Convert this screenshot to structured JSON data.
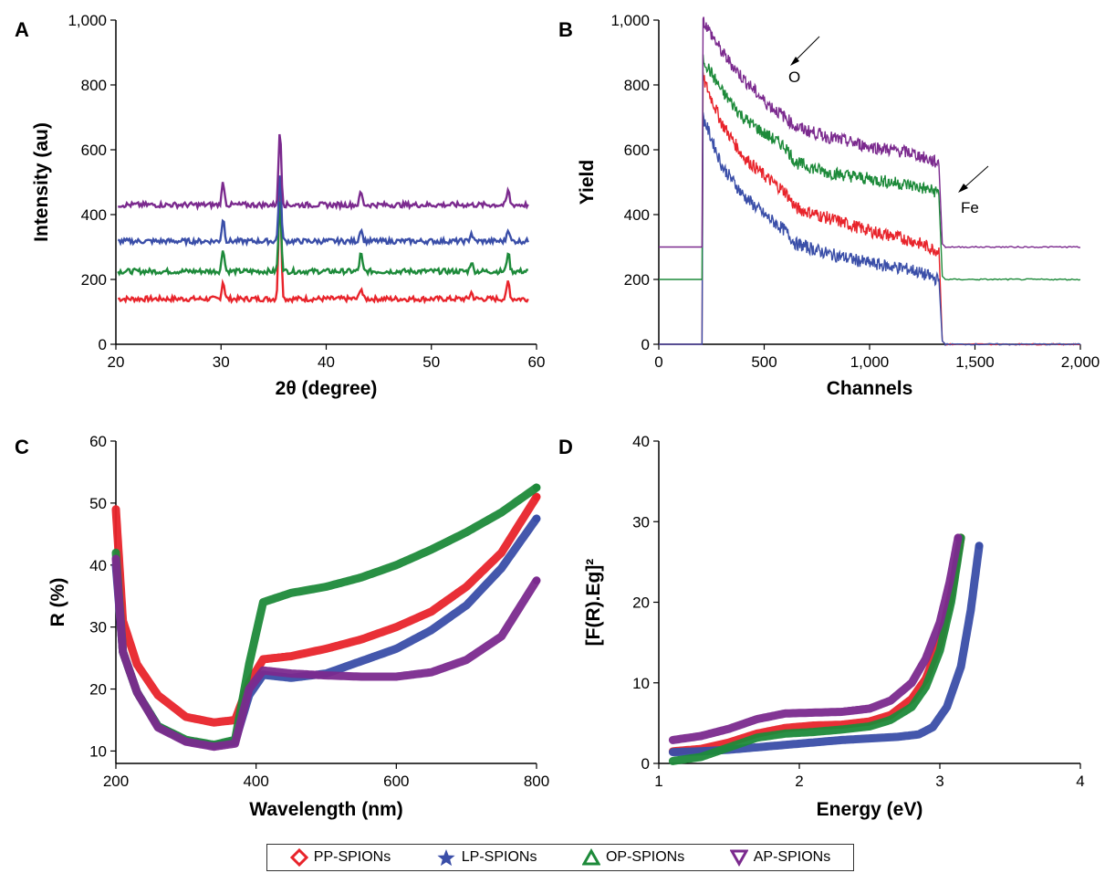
{
  "legend": [
    {
      "name": "PP-SPIONs",
      "color": "#e8242b",
      "marker": "diamond-icon"
    },
    {
      "name": "LP-SPIONs",
      "color": "#3a4ea8",
      "marker": "star-icon"
    },
    {
      "name": "OP-SPIONs",
      "color": "#1d8a3a",
      "marker": "triangle-up-icon"
    },
    {
      "name": "AP-SPIONs",
      "color": "#7b2a8e",
      "marker": "triangle-down-icon"
    }
  ],
  "chart_data": [
    {
      "panel": "A",
      "type": "line",
      "xlabel": "2θ (degree)",
      "ylabel": "Intensity (au)",
      "xlim": [
        20,
        60
      ],
      "ylim": [
        0,
        1000
      ],
      "xticks": [
        "20",
        "30",
        "40",
        "50",
        "60"
      ],
      "yticks": [
        "0",
        "200",
        "400",
        "600",
        "800",
        "1,000"
      ],
      "series": [
        {
          "color": "#e8242b",
          "baseline": 140,
          "peaks": [
            [
              30.2,
              55
            ],
            [
              35.6,
              350
            ],
            [
              43.3,
              35
            ],
            [
              53.8,
              20
            ],
            [
              57.3,
              55
            ],
            [
              62.8,
              0
            ]
          ]
        },
        {
          "color": "#1d8a3a",
          "baseline": 225,
          "peaks": [
            [
              30.2,
              70
            ],
            [
              35.6,
              220
            ],
            [
              43.3,
              55
            ],
            [
              53.8,
              30
            ],
            [
              57.3,
              60
            ]
          ]
        },
        {
          "color": "#3a4ea8",
          "baseline": 318,
          "peaks": [
            [
              30.2,
              70
            ],
            [
              35.6,
              210
            ],
            [
              43.3,
              40
            ],
            [
              53.8,
              25
            ],
            [
              57.3,
              40
            ]
          ]
        },
        {
          "color": "#7b2a8e",
          "baseline": 430,
          "peaks": [
            [
              30.2,
              70
            ],
            [
              35.6,
              230
            ],
            [
              43.3,
              40
            ],
            [
              57.3,
              45
            ]
          ]
        }
      ]
    },
    {
      "panel": "B",
      "type": "line",
      "xlabel": "Channels",
      "ylabel": "Yield",
      "xlim": [
        0,
        2000
      ],
      "ylim": [
        0,
        1000
      ],
      "xticks": [
        "0",
        "500",
        "1,000",
        "1,500",
        "2,000"
      ],
      "yticks": [
        "0",
        "200",
        "400",
        "600",
        "800",
        "1,000"
      ],
      "annotations": [
        "O",
        "Fe"
      ],
      "series": [
        {
          "color": "#e8242b",
          "before": 0,
          "after": 0,
          "points": [
            [
              210,
              820
            ],
            [
              300,
              680
            ],
            [
              400,
              580
            ],
            [
              500,
              520
            ],
            [
              600,
              470
            ],
            [
              650,
              420
            ],
            [
              800,
              390
            ],
            [
              1000,
              350
            ],
            [
              1200,
              320
            ],
            [
              1320,
              290
            ]
          ]
        },
        {
          "color": "#3a4ea8",
          "before": 0,
          "after": 0,
          "points": [
            [
              210,
              700
            ],
            [
              300,
              550
            ],
            [
              400,
              460
            ],
            [
              500,
              400
            ],
            [
              600,
              350
            ],
            [
              650,
              310
            ],
            [
              800,
              280
            ],
            [
              1000,
              250
            ],
            [
              1200,
              230
            ],
            [
              1320,
              200
            ]
          ]
        },
        {
          "color": "#1d8a3a",
          "before": 200,
          "after": 200,
          "points": [
            [
              210,
              880
            ],
            [
              300,
              780
            ],
            [
              400,
              700
            ],
            [
              500,
              650
            ],
            [
              600,
              610
            ],
            [
              650,
              560
            ],
            [
              800,
              530
            ],
            [
              1000,
              510
            ],
            [
              1200,
              490
            ],
            [
              1320,
              470
            ]
          ]
        },
        {
          "color": "#7b2a8e",
          "before": 300,
          "after": 300,
          "points": [
            [
              210,
              1000
            ],
            [
              300,
              900
            ],
            [
              400,
              820
            ],
            [
              500,
              750
            ],
            [
              600,
              700
            ],
            [
              650,
              670
            ],
            [
              800,
              640
            ],
            [
              1000,
              610
            ],
            [
              1200,
              590
            ],
            [
              1320,
              560
            ]
          ]
        }
      ]
    },
    {
      "panel": "C",
      "type": "line",
      "xlabel": "Wavelength (nm)",
      "ylabel": "R (%)",
      "xlim": [
        200,
        800
      ],
      "ylim": [
        8,
        60
      ],
      "xticks": [
        "200",
        "400",
        "600",
        "800"
      ],
      "yticks": [
        "10",
        "20",
        "30",
        "40",
        "50",
        "60"
      ],
      "series": [
        {
          "name": "PP-SPIONs",
          "color": "#e8242b",
          "x": [
            200,
            210,
            230,
            260,
            300,
            340,
            370,
            390,
            410,
            450,
            500,
            550,
            600,
            650,
            700,
            750,
            800
          ],
          "y": [
            49,
            31,
            24,
            19,
            15.5,
            14.6,
            15,
            21,
            24.8,
            25.3,
            26.5,
            28,
            30,
            32.5,
            36.5,
            42,
            51
          ]
        },
        {
          "name": "LP-SPIONs",
          "color": "#3a4ea8",
          "x": [
            200,
            210,
            230,
            260,
            300,
            340,
            370,
            390,
            410,
            450,
            500,
            550,
            600,
            650,
            700,
            750,
            800
          ],
          "y": [
            40,
            26,
            19.5,
            14,
            11.6,
            10.9,
            11.5,
            19,
            22.3,
            21.8,
            22.5,
            24.5,
            26.5,
            29.5,
            33.5,
            39.5,
            47.5
          ]
        },
        {
          "name": "OP-SPIONs",
          "color": "#1d8a3a",
          "x": [
            200,
            210,
            230,
            260,
            300,
            340,
            370,
            390,
            410,
            450,
            500,
            550,
            600,
            650,
            700,
            750,
            800
          ],
          "y": [
            42,
            26,
            19.5,
            14,
            11.8,
            11,
            11.8,
            24,
            34,
            35.5,
            36.5,
            38,
            40,
            42.5,
            45.3,
            48.5,
            52.5
          ]
        },
        {
          "name": "AP-SPIONs",
          "color": "#7b2a8e",
          "x": [
            200,
            210,
            230,
            260,
            300,
            340,
            370,
            390,
            410,
            450,
            500,
            550,
            600,
            650,
            700,
            750,
            800
          ],
          "y": [
            41,
            26,
            19.5,
            13.8,
            11.5,
            10.7,
            11.2,
            20,
            23,
            22.5,
            22.2,
            22,
            22,
            22.7,
            24.7,
            28.5,
            37.5
          ]
        }
      ]
    },
    {
      "panel": "D",
      "type": "line",
      "xlabel": "Energy (eV)",
      "ylabel": "[F(R).Eg]²",
      "xlim": [
        1,
        4
      ],
      "ylim": [
        0,
        40
      ],
      "xticks": [
        "1",
        "2",
        "3",
        "4"
      ],
      "yticks": [
        "0",
        "10",
        "20",
        "30",
        "40"
      ],
      "series": [
        {
          "name": "PP-SPIONs",
          "color": "#e8242b",
          "x": [
            1.1,
            1.3,
            1.5,
            1.7,
            1.9,
            2.1,
            2.3,
            2.5,
            2.65,
            2.8,
            2.9,
            3.0,
            3.08,
            3.15
          ],
          "y": [
            1.5,
            1.8,
            2.6,
            3.7,
            4.4,
            4.7,
            4.8,
            5.2,
            6.0,
            8.0,
            10.5,
            15.0,
            21.0,
            28.0
          ]
        },
        {
          "name": "LP-SPIONs",
          "color": "#3a4ea8",
          "x": [
            1.1,
            1.3,
            1.5,
            1.7,
            1.9,
            2.1,
            2.3,
            2.5,
            2.7,
            2.85,
            2.95,
            3.05,
            3.15,
            3.22,
            3.28
          ],
          "y": [
            1.4,
            1.5,
            1.7,
            2.0,
            2.3,
            2.6,
            2.9,
            3.1,
            3.3,
            3.6,
            4.5,
            7.0,
            12.0,
            19.0,
            27.0
          ]
        },
        {
          "name": "OP-SPIONs",
          "color": "#1d8a3a",
          "x": [
            1.1,
            1.3,
            1.5,
            1.7,
            1.9,
            2.1,
            2.3,
            2.5,
            2.65,
            2.8,
            2.9,
            3.0,
            3.08,
            3.15
          ],
          "y": [
            0.3,
            0.8,
            2.0,
            3.2,
            3.7,
            3.9,
            4.2,
            4.6,
            5.4,
            7.0,
            9.5,
            14.0,
            20.0,
            28.0
          ]
        },
        {
          "name": "AP-SPIONs",
          "color": "#7b2a8e",
          "x": [
            1.1,
            1.3,
            1.5,
            1.7,
            1.9,
            2.1,
            2.3,
            2.5,
            2.65,
            2.8,
            2.9,
            3.0,
            3.07,
            3.13
          ],
          "y": [
            2.9,
            3.4,
            4.3,
            5.5,
            6.2,
            6.3,
            6.4,
            6.8,
            7.8,
            10.0,
            13.0,
            17.5,
            22.5,
            28.0
          ]
        }
      ]
    }
  ]
}
